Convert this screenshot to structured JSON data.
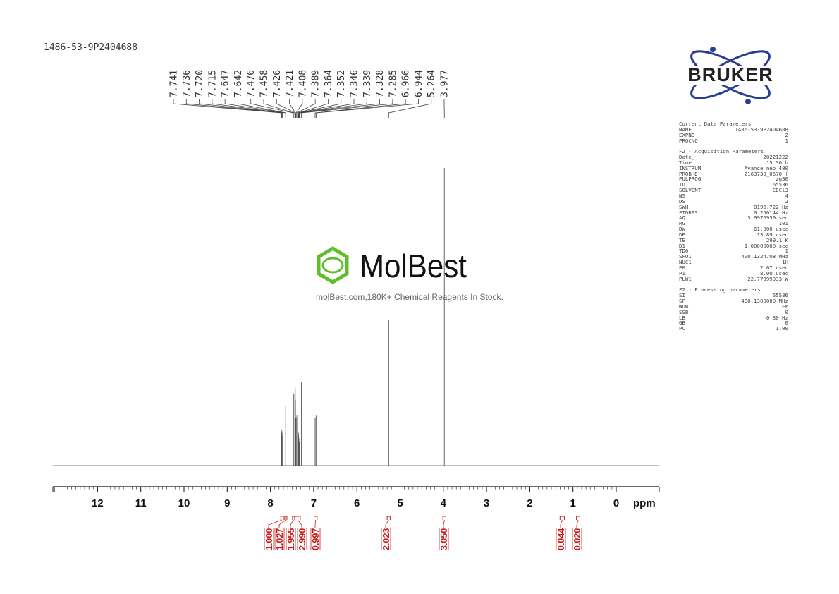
{
  "sample_id": "1486-53-9P2404688",
  "brand": {
    "name": "BRUKER",
    "accent": "#2a3f8f",
    "text_color": "#222222"
  },
  "watermark": {
    "name": "MolBest",
    "tagline": "molBest.com,180K+ Chemical Reagents In Stock.",
    "accent": "#5fbf2a"
  },
  "parameters": {
    "sections": [
      {
        "title": "Current Data Parameters",
        "rows": [
          {
            "key": "NAME",
            "value": "1486-53-9P2404688"
          },
          {
            "key": "EXPNO",
            "value": "2"
          },
          {
            "key": "PROCNO",
            "value": "1"
          }
        ]
      },
      {
        "title": "F2 - Acquisition Parameters",
        "rows": [
          {
            "key": "Date_",
            "value": "20221222"
          },
          {
            "key": "Time",
            "value": "15.36 h"
          },
          {
            "key": "INSTRUM",
            "value": "Avance neo 400"
          },
          {
            "key": "PROBHD",
            "value": "Z163739_0670 ("
          },
          {
            "key": "PULPROG",
            "value": "zg30"
          },
          {
            "key": "TD",
            "value": "65536"
          },
          {
            "key": "SOLVENT",
            "value": "CDCl3"
          },
          {
            "key": "NS",
            "value": "4"
          },
          {
            "key": "DS",
            "value": "2"
          },
          {
            "key": "SWH",
            "value": "8196.722 Hz"
          },
          {
            "key": "FIDRES",
            "value": "0.250144 Hz"
          },
          {
            "key": "AQ",
            "value": "3.9976959 sec"
          },
          {
            "key": "RG",
            "value": "101"
          },
          {
            "key": "DW",
            "value": "61.000 usec"
          },
          {
            "key": "DE",
            "value": "13.89 usec"
          },
          {
            "key": "TE",
            "value": "299.1 K"
          },
          {
            "key": "D1",
            "value": "1.00000000 sec"
          },
          {
            "key": "TD0",
            "value": "1"
          },
          {
            "key": "SFO1",
            "value": "400.1324708 MHz"
          },
          {
            "key": "NUC1",
            "value": "1H"
          },
          {
            "key": "P0",
            "value": "2.67 usec"
          },
          {
            "key": "P1",
            "value": "8.00 usec"
          },
          {
            "key": "PLW1",
            "value": "22.77899933 W"
          }
        ]
      },
      {
        "title": "F2 - Processing parameters",
        "rows": [
          {
            "key": "SI",
            "value": "65536"
          },
          {
            "key": "SF",
            "value": "400.1300000 MHz"
          },
          {
            "key": "WDW",
            "value": "EM"
          },
          {
            "key": "SSB",
            "value": "0"
          },
          {
            "key": "LB",
            "value": "0.30 Hz"
          },
          {
            "key": "GB",
            "value": "0"
          },
          {
            "key": "PC",
            "value": "1.00"
          }
        ]
      }
    ]
  },
  "chart_data": {
    "type": "line",
    "xlabel": "ppm",
    "xlim": [
      14,
      0
    ],
    "x_ticks": [
      12,
      11,
      10,
      9,
      8,
      7,
      6,
      5,
      4,
      3,
      2,
      1,
      0
    ],
    "peak_labels": [
      "7.741",
      "7.736",
      "7.720",
      "7.715",
      "7.647",
      "7.642",
      "7.476",
      "7.458",
      "7.426",
      "7.421",
      "7.408",
      "7.389",
      "7.364",
      "7.352",
      "7.346",
      "7.339",
      "7.328",
      "7.285",
      "6.966",
      "6.944",
      "5.264",
      "3.977"
    ],
    "peaks": [
      {
        "ppm": 7.741,
        "height": 0.11
      },
      {
        "ppm": 7.736,
        "height": 0.12
      },
      {
        "ppm": 7.72,
        "height": 0.1
      },
      {
        "ppm": 7.715,
        "height": 0.11
      },
      {
        "ppm": 7.647,
        "height": 0.2
      },
      {
        "ppm": 7.642,
        "height": 0.19
      },
      {
        "ppm": 7.476,
        "height": 0.25
      },
      {
        "ppm": 7.458,
        "height": 0.24
      },
      {
        "ppm": 7.426,
        "height": 0.26
      },
      {
        "ppm": 7.421,
        "height": 0.22
      },
      {
        "ppm": 7.408,
        "height": 0.16
      },
      {
        "ppm": 7.389,
        "height": 0.17
      },
      {
        "ppm": 7.364,
        "height": 0.1
      },
      {
        "ppm": 7.352,
        "height": 0.11
      },
      {
        "ppm": 7.346,
        "height": 0.1
      },
      {
        "ppm": 7.339,
        "height": 0.09
      },
      {
        "ppm": 7.328,
        "height": 0.08
      },
      {
        "ppm": 7.285,
        "height": 0.28
      },
      {
        "ppm": 6.966,
        "height": 0.16
      },
      {
        "ppm": 6.944,
        "height": 0.17
      },
      {
        "ppm": 5.264,
        "height": 0.49
      },
      {
        "ppm": 3.977,
        "height": 1.0
      }
    ],
    "integrals": [
      {
        "label": "1.000",
        "from": 7.76,
        "to": 7.7
      },
      {
        "label": "1.027",
        "from": 7.67,
        "to": 7.62
      },
      {
        "label": "1.955",
        "from": 7.49,
        "to": 7.44
      },
      {
        "label": "2.990",
        "from": 7.43,
        "to": 7.31
      },
      {
        "label": "0.997",
        "from": 6.99,
        "to": 6.92
      },
      {
        "label": "2.023",
        "from": 5.3,
        "to": 5.23
      },
      {
        "label": "3.050",
        "from": 4.01,
        "to": 3.94
      },
      {
        "label": "0.044",
        "from": 1.3,
        "to": 1.2
      },
      {
        "label": "0.020",
        "from": 0.92,
        "to": 0.84
      }
    ],
    "colors": {
      "spectrum": "#555555",
      "integral": "#cc1a1a",
      "axis": "#111111"
    }
  }
}
